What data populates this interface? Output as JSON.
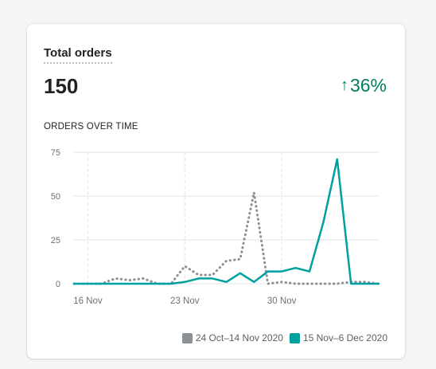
{
  "card": {
    "title": "Total orders",
    "value": "150",
    "change": "36%",
    "change_icon": "arrow-up-icon",
    "section_title": "ORDERS OVER TIME"
  },
  "colors": {
    "previous": "#8c9196",
    "current": "#00a0a0",
    "positive": "#007f5f",
    "grid": "#e1e3e5"
  },
  "chart_data": {
    "type": "line",
    "x_tick_labels": [
      "16 Nov",
      "23 Nov",
      "30 Nov"
    ],
    "x_tick_indices": [
      1,
      8,
      15
    ],
    "y_ticks": [
      0,
      25,
      50,
      75
    ],
    "ylim": [
      0,
      75
    ],
    "grid": true,
    "legend_position": "bottom-right",
    "series": [
      {
        "name": "24 Oct–14 Nov 2020",
        "style": "dotted",
        "values": [
          0,
          0,
          0,
          3,
          2,
          3,
          0,
          0,
          10,
          5,
          5,
          13,
          14,
          52,
          0,
          1,
          0,
          0,
          0,
          0,
          1,
          1,
          0
        ]
      },
      {
        "name": "15 Nov–6 Dec 2020",
        "style": "solid",
        "values": [
          0,
          0,
          0,
          0,
          0,
          0,
          0,
          0,
          1,
          3,
          3,
          1,
          6,
          1,
          7,
          7,
          9,
          7,
          35,
          71,
          0,
          0,
          0
        ]
      }
    ]
  }
}
